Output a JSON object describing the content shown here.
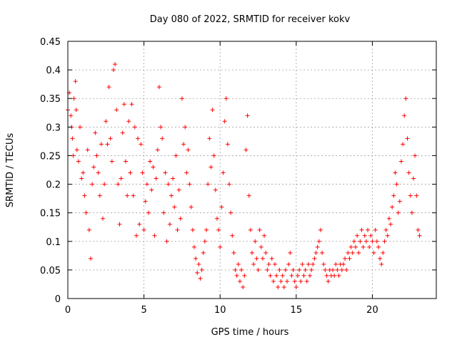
{
  "chart_data": {
    "type": "scatter",
    "title": "Day 080 of 2022, SRMTID for receiver kokv",
    "xlabel": "GPS time / hours",
    "ylabel": "SRMTID / TECUs",
    "xlim": [
      0,
      24.2
    ],
    "ylim": [
      0,
      0.45
    ],
    "xticks": [
      0,
      5,
      10,
      15,
      20
    ],
    "xtick_labels": [
      "0",
      "5",
      "10",
      "15",
      "20"
    ],
    "yticks": [
      0,
      0.05,
      0.1,
      0.15,
      0.2,
      0.25,
      0.3,
      0.35,
      0.4,
      0.45
    ],
    "ytick_labels": [
      "0",
      "0.05",
      "0.1",
      "0.15",
      "0.2",
      "0.25",
      "0.3",
      "0.35",
      "0.4",
      "0.45"
    ],
    "grid": true,
    "marker": "+",
    "color": "#ff0000",
    "series": [
      {
        "name": "SRMTID",
        "points": [
          [
            0.0,
            0.33
          ],
          [
            0.1,
            0.36
          ],
          [
            0.2,
            0.32
          ],
          [
            0.25,
            0.3
          ],
          [
            0.3,
            0.28
          ],
          [
            0.35,
            0.25
          ],
          [
            0.4,
            0.35
          ],
          [
            0.5,
            0.38
          ],
          [
            0.55,
            0.33
          ],
          [
            0.6,
            0.26
          ],
          [
            0.7,
            0.24
          ],
          [
            0.8,
            0.3
          ],
          [
            0.9,
            0.21
          ],
          [
            1.0,
            0.22
          ],
          [
            1.1,
            0.18
          ],
          [
            1.2,
            0.15
          ],
          [
            1.3,
            0.26
          ],
          [
            1.4,
            0.12
          ],
          [
            1.5,
            0.07
          ],
          [
            1.6,
            0.2
          ],
          [
            1.7,
            0.23
          ],
          [
            1.8,
            0.29
          ],
          [
            1.9,
            0.25
          ],
          [
            2.0,
            0.22
          ],
          [
            2.1,
            0.18
          ],
          [
            2.2,
            0.27
          ],
          [
            2.3,
            0.14
          ],
          [
            2.4,
            0.2
          ],
          [
            2.5,
            0.31
          ],
          [
            2.6,
            0.27
          ],
          [
            2.7,
            0.37
          ],
          [
            2.8,
            0.28
          ],
          [
            2.9,
            0.24
          ],
          [
            3.0,
            0.4
          ],
          [
            3.1,
            0.41
          ],
          [
            3.2,
            0.33
          ],
          [
            3.3,
            0.2
          ],
          [
            3.4,
            0.13
          ],
          [
            3.5,
            0.21
          ],
          [
            3.6,
            0.29
          ],
          [
            3.7,
            0.34
          ],
          [
            3.8,
            0.24
          ],
          [
            3.9,
            0.18
          ],
          [
            4.0,
            0.31
          ],
          [
            4.1,
            0.22
          ],
          [
            4.2,
            0.34
          ],
          [
            4.3,
            0.18
          ],
          [
            4.4,
            0.3
          ],
          [
            4.5,
            0.11
          ],
          [
            4.6,
            0.28
          ],
          [
            4.7,
            0.13
          ],
          [
            4.8,
            0.27
          ],
          [
            4.9,
            0.22
          ],
          [
            5.0,
            0.12
          ],
          [
            5.1,
            0.17
          ],
          [
            5.2,
            0.2
          ],
          [
            5.3,
            0.15
          ],
          [
            5.4,
            0.24
          ],
          [
            5.5,
            0.19
          ],
          [
            5.6,
            0.23
          ],
          [
            5.7,
            0.11
          ],
          [
            5.8,
            0.21
          ],
          [
            5.9,
            0.26
          ],
          [
            6.0,
            0.37
          ],
          [
            6.1,
            0.3
          ],
          [
            6.2,
            0.28
          ],
          [
            6.3,
            0.15
          ],
          [
            6.4,
            0.22
          ],
          [
            6.5,
            0.1
          ],
          [
            6.6,
            0.2
          ],
          [
            6.7,
            0.13
          ],
          [
            6.8,
            0.18
          ],
          [
            6.9,
            0.21
          ],
          [
            7.0,
            0.16
          ],
          [
            7.1,
            0.25
          ],
          [
            7.2,
            0.12
          ],
          [
            7.3,
            0.19
          ],
          [
            7.4,
            0.14
          ],
          [
            7.5,
            0.35
          ],
          [
            7.6,
            0.27
          ],
          [
            7.7,
            0.3
          ],
          [
            7.8,
            0.22
          ],
          [
            7.9,
            0.26
          ],
          [
            8.0,
            0.2
          ],
          [
            8.1,
            0.16
          ],
          [
            8.2,
            0.12
          ],
          [
            8.3,
            0.09
          ],
          [
            8.4,
            0.07
          ],
          [
            8.5,
            0.045
          ],
          [
            8.6,
            0.06
          ],
          [
            8.7,
            0.035
          ],
          [
            8.8,
            0.05
          ],
          [
            8.9,
            0.08
          ],
          [
            9.0,
            0.1
          ],
          [
            9.1,
            0.12
          ],
          [
            9.2,
            0.2
          ],
          [
            9.3,
            0.28
          ],
          [
            9.4,
            0.23
          ],
          [
            9.5,
            0.33
          ],
          [
            9.6,
            0.25
          ],
          [
            9.7,
            0.19
          ],
          [
            9.8,
            0.14
          ],
          [
            9.9,
            0.12
          ],
          [
            10.0,
            0.09
          ],
          [
            10.1,
            0.16
          ],
          [
            10.2,
            0.22
          ],
          [
            10.3,
            0.31
          ],
          [
            10.4,
            0.35
          ],
          [
            10.5,
            0.27
          ],
          [
            10.6,
            0.2
          ],
          [
            10.7,
            0.15
          ],
          [
            10.8,
            0.11
          ],
          [
            10.9,
            0.08
          ],
          [
            11.0,
            0.05
          ],
          [
            11.1,
            0.04
          ],
          [
            11.2,
            0.06
          ],
          [
            11.3,
            0.03
          ],
          [
            11.4,
            0.05
          ],
          [
            11.5,
            0.02
          ],
          [
            11.6,
            0.04
          ],
          [
            11.7,
            0.26
          ],
          [
            11.8,
            0.32
          ],
          [
            11.9,
            0.18
          ],
          [
            12.0,
            0.12
          ],
          [
            12.1,
            0.08
          ],
          [
            12.2,
            0.06
          ],
          [
            12.3,
            0.1
          ],
          [
            12.4,
            0.07
          ],
          [
            12.5,
            0.05
          ],
          [
            12.6,
            0.12
          ],
          [
            12.7,
            0.09
          ],
          [
            12.8,
            0.07
          ],
          [
            12.9,
            0.11
          ],
          [
            13.0,
            0.08
          ],
          [
            13.1,
            0.05
          ],
          [
            13.2,
            0.06
          ],
          [
            13.3,
            0.04
          ],
          [
            13.4,
            0.07
          ],
          [
            13.5,
            0.03
          ],
          [
            13.6,
            0.06
          ],
          [
            13.7,
            0.04
          ],
          [
            13.8,
            0.02
          ],
          [
            13.9,
            0.05
          ],
          [
            14.0,
            0.03
          ],
          [
            14.1,
            0.04
          ],
          [
            14.2,
            0.02
          ],
          [
            14.3,
            0.05
          ],
          [
            14.4,
            0.03
          ],
          [
            14.5,
            0.06
          ],
          [
            14.6,
            0.08
          ],
          [
            14.7,
            0.04
          ],
          [
            14.8,
            0.05
          ],
          [
            14.9,
            0.03
          ],
          [
            15.0,
            0.02
          ],
          [
            15.1,
            0.04
          ],
          [
            15.2,
            0.05
          ],
          [
            15.3,
            0.03
          ],
          [
            15.4,
            0.06
          ],
          [
            15.5,
            0.04
          ],
          [
            15.6,
            0.05
          ],
          [
            15.7,
            0.03
          ],
          [
            15.8,
            0.06
          ],
          [
            15.9,
            0.04
          ],
          [
            16.0,
            0.05
          ],
          [
            16.1,
            0.06
          ],
          [
            16.2,
            0.07
          ],
          [
            16.3,
            0.08
          ],
          [
            16.4,
            0.09
          ],
          [
            16.5,
            0.1
          ],
          [
            16.6,
            0.12
          ],
          [
            16.7,
            0.08
          ],
          [
            16.8,
            0.06
          ],
          [
            16.9,
            0.05
          ],
          [
            17.0,
            0.04
          ],
          [
            17.1,
            0.03
          ],
          [
            17.2,
            0.05
          ],
          [
            17.3,
            0.04
          ],
          [
            17.4,
            0.05
          ],
          [
            17.5,
            0.04
          ],
          [
            17.6,
            0.06
          ],
          [
            17.7,
            0.05
          ],
          [
            17.8,
            0.04
          ],
          [
            17.9,
            0.06
          ],
          [
            18.0,
            0.05
          ],
          [
            18.1,
            0.06
          ],
          [
            18.2,
            0.07
          ],
          [
            18.3,
            0.05
          ],
          [
            18.4,
            0.08
          ],
          [
            18.5,
            0.07
          ],
          [
            18.6,
            0.09
          ],
          [
            18.7,
            0.08
          ],
          [
            18.8,
            0.1
          ],
          [
            18.9,
            0.09
          ],
          [
            19.0,
            0.11
          ],
          [
            19.1,
            0.08
          ],
          [
            19.2,
            0.1
          ],
          [
            19.3,
            0.12
          ],
          [
            19.4,
            0.09
          ],
          [
            19.5,
            0.11
          ],
          [
            19.6,
            0.1
          ],
          [
            19.7,
            0.12
          ],
          [
            19.8,
            0.09
          ],
          [
            19.9,
            0.11
          ],
          [
            20.0,
            0.1
          ],
          [
            20.1,
            0.08
          ],
          [
            20.2,
            0.12
          ],
          [
            20.3,
            0.1
          ],
          [
            20.4,
            0.09
          ],
          [
            20.5,
            0.07
          ],
          [
            20.6,
            0.06
          ],
          [
            20.7,
            0.08
          ],
          [
            20.8,
            0.1
          ],
          [
            20.9,
            0.12
          ],
          [
            21.0,
            0.11
          ],
          [
            21.1,
            0.14
          ],
          [
            21.2,
            0.13
          ],
          [
            21.3,
            0.16
          ],
          [
            21.4,
            0.18
          ],
          [
            21.5,
            0.22
          ],
          [
            21.6,
            0.2
          ],
          [
            21.7,
            0.15
          ],
          [
            21.8,
            0.17
          ],
          [
            21.9,
            0.24
          ],
          [
            22.0,
            0.27
          ],
          [
            22.1,
            0.32
          ],
          [
            22.2,
            0.35
          ],
          [
            22.3,
            0.28
          ],
          [
            22.4,
            0.22
          ],
          [
            22.5,
            0.18
          ],
          [
            22.6,
            0.15
          ],
          [
            22.7,
            0.21
          ],
          [
            22.8,
            0.25
          ],
          [
            22.9,
            0.18
          ],
          [
            23.0,
            0.12
          ],
          [
            23.1,
            0.11
          ]
        ]
      }
    ]
  }
}
